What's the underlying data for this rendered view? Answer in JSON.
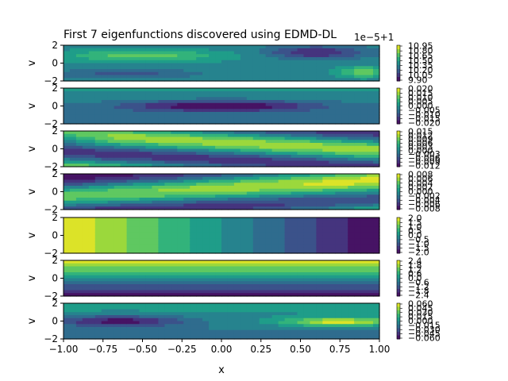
{
  "chart_data": {
    "type": "heatmap",
    "title": "First 7 eigenfunctions discovered using EDMD-DL",
    "xlabel": "x",
    "ylabel": "v",
    "xlim": [
      -1.0,
      1.0
    ],
    "ylim": [
      -2,
      2
    ],
    "x_ticks": [
      "−1.00",
      "−0.75",
      "−0.50",
      "−0.25",
      "0.00",
      "0.25",
      "0.50",
      "0.75",
      "1.00"
    ],
    "y_ticks": [
      "−2",
      "0",
      "2"
    ],
    "colormap": "viridis",
    "panels": [
      {
        "name": "eigenfunction-1",
        "offset_text": "1e−5+1",
        "colorbar_ticks": [
          "10.95",
          "10.80",
          "10.65",
          "10.50",
          "10.35",
          "10.20",
          "10.05",
          "9.90"
        ],
        "pattern": "blob-hi-left-lo-right"
      },
      {
        "name": "eigenfunction-2",
        "colorbar_ticks": [
          "0.020",
          "0.015",
          "0.010",
          "0.005",
          "0.000",
          "−0.005",
          "−0.010",
          "−0.015",
          "−0.020"
        ],
        "pattern": "dark-center"
      },
      {
        "name": "eigenfunction-3",
        "colorbar_ticks": [
          "0.015",
          "0.012",
          "0.009",
          "0.006",
          "0.003",
          "0.000",
          "−0.003",
          "−0.006",
          "−0.009",
          "−0.012"
        ],
        "pattern": "diag-down"
      },
      {
        "name": "eigenfunction-4",
        "colorbar_ticks": [
          "0.008",
          "0.006",
          "0.004",
          "0.002",
          "0.000",
          "−0.002",
          "−0.004",
          "−0.006",
          "−0.008"
        ],
        "pattern": "diag-up"
      },
      {
        "name": "eigenfunction-5",
        "colorbar_ticks": [
          "2.0",
          "1.5",
          "1.0",
          "0.5",
          "0.0",
          "−0.5",
          "−1.0",
          "−1.5",
          "−2.0"
        ],
        "pattern": "x-bands"
      },
      {
        "name": "eigenfunction-6",
        "colorbar_ticks": [
          "2.4",
          "1.8",
          "1.2",
          "0.6",
          "0.0",
          "−0.6",
          "−1.2",
          "−1.8",
          "−2.4"
        ],
        "pattern": "v-bands"
      },
      {
        "name": "eigenfunction-7",
        "colorbar_ticks": [
          "0.060",
          "0.045",
          "0.030",
          "0.015",
          "0.000",
          "−0.015",
          "−0.030",
          "−0.045",
          "−0.060"
        ],
        "pattern": "two-blobs"
      }
    ]
  }
}
